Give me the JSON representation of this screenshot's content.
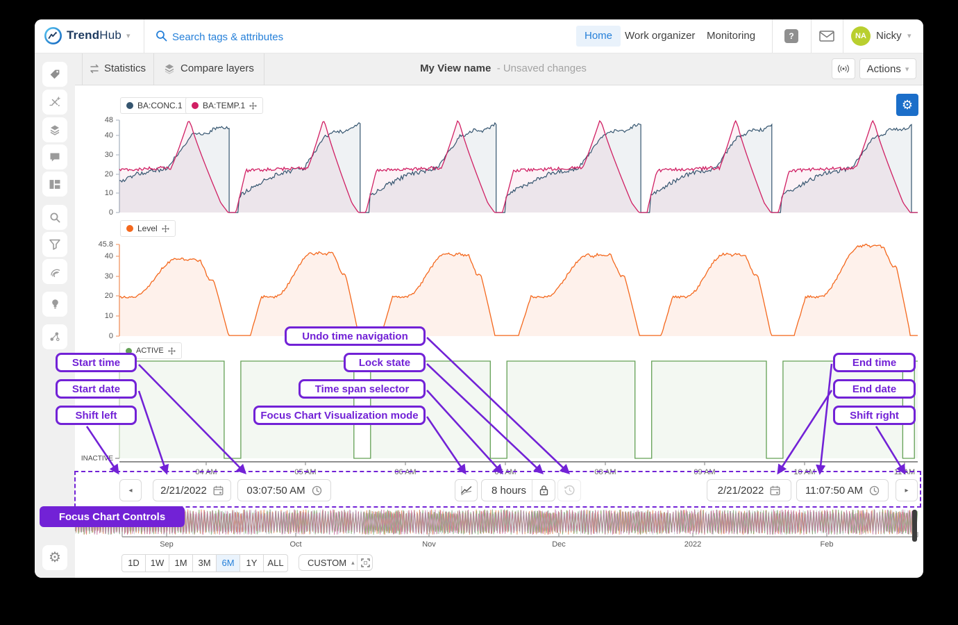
{
  "header": {
    "brand_trend": "Trend",
    "brand_hub": "Hub",
    "search_placeholder": "Search tags & attributes",
    "nav_home": "Home",
    "nav_work": "Work organizer",
    "nav_monitoring": "Monitoring",
    "user_initials": "NA",
    "user_name": "Nicky"
  },
  "toolbar": {
    "statistics": "Statistics",
    "compare_layers": "Compare layers",
    "view_name": "My View name",
    "unsaved_suffix": "- Unsaved changes",
    "actions": "Actions"
  },
  "focus_controls": {
    "start_date": "2/21/2022",
    "start_time": "03:07:50 AM",
    "time_span": "8 hours",
    "end_date": "2/21/2022",
    "end_time": "11:07:50 AM"
  },
  "charts": {
    "legend1a": "BA:CONC.1",
    "legend1b": "BA:TEMP.1",
    "legend2": "Level",
    "legend3": "ACTIVE",
    "inactive_label": "INACTIVE",
    "y1_ticks": [
      "48",
      "40",
      "30",
      "20",
      "10",
      "0"
    ],
    "y2_ticks": [
      "45.8",
      "40",
      "30",
      "20",
      "10",
      "0"
    ],
    "x_ticks": [
      "04 AM",
      "05 AM",
      "06 AM",
      "07 AM",
      "08 AM",
      "09 AM",
      "10 AM",
      "11 AM"
    ]
  },
  "overview": {
    "months": [
      "Sep",
      "Oct",
      "Nov",
      "Dec",
      "2022",
      "Feb"
    ],
    "ranges": [
      "1D",
      "1W",
      "1M",
      "3M",
      "6M",
      "1Y",
      "ALL"
    ],
    "active_range": "6M",
    "custom": "CUSTOM"
  },
  "callouts": {
    "start_time": "Start time",
    "start_date": "Start date",
    "shift_left": "Shift left",
    "undo": "Undo time navigation",
    "lock": "Lock state",
    "time_span": "Time span selector",
    "focus_mode": "Focus Chart Visualization mode",
    "end_time": "End time",
    "end_date": "End date",
    "shift_right": "Shift right",
    "focus_controls": "Focus Chart Controls"
  },
  "colors": {
    "purple": "#7222d6",
    "blue": "#2680d9",
    "conc": "#35556f",
    "temp": "#d01f63",
    "level": "#f4681d",
    "active": "#63a055"
  },
  "chart_data": {
    "type": "line",
    "time_start": "2/21/2022 03:07:50 AM",
    "time_end": "2/21/2022 11:07:50 AM",
    "span_minutes": 480,
    "cycle_boundaries_min": [
      -20,
      68,
      146,
      228,
      315,
      394,
      478,
      560
    ],
    "series": [
      {
        "name": "BA:CONC.1",
        "color": "#35556f",
        "range": [
          0,
          48
        ],
        "shape": "noisy ramp 8-20-23, climb to 40, wavy plateau to 45.5, vertical cliff to 0 at each cycle end"
      },
      {
        "name": "BA:TEMP.1",
        "color": "#d01f63",
        "range": [
          0,
          48
        ],
        "shape": "rise to plateau ~23, ramp to 48 peak at ~70% of cycle, decay to 0 before cycle end"
      },
      {
        "name": "Level",
        "color": "#f4681d",
        "range": [
          0,
          45.8
        ],
        "peaks_per_cycle": [
          39,
          42,
          41.5,
          41,
          41.5,
          45.8,
          40
        ],
        "shape": "0 shelf, rise to 19 shelf, rounded peak, step down ~10, fall to 0"
      },
      {
        "name": "ACTIVE",
        "color": "#63a055",
        "digital": true,
        "inactive_gaps_min": [
          [
            63,
            73
          ],
          [
            141,
            151
          ],
          [
            223,
            233
          ],
          [
            310,
            320
          ],
          [
            389,
            399
          ],
          [
            471,
            478
          ]
        ]
      }
    ]
  }
}
